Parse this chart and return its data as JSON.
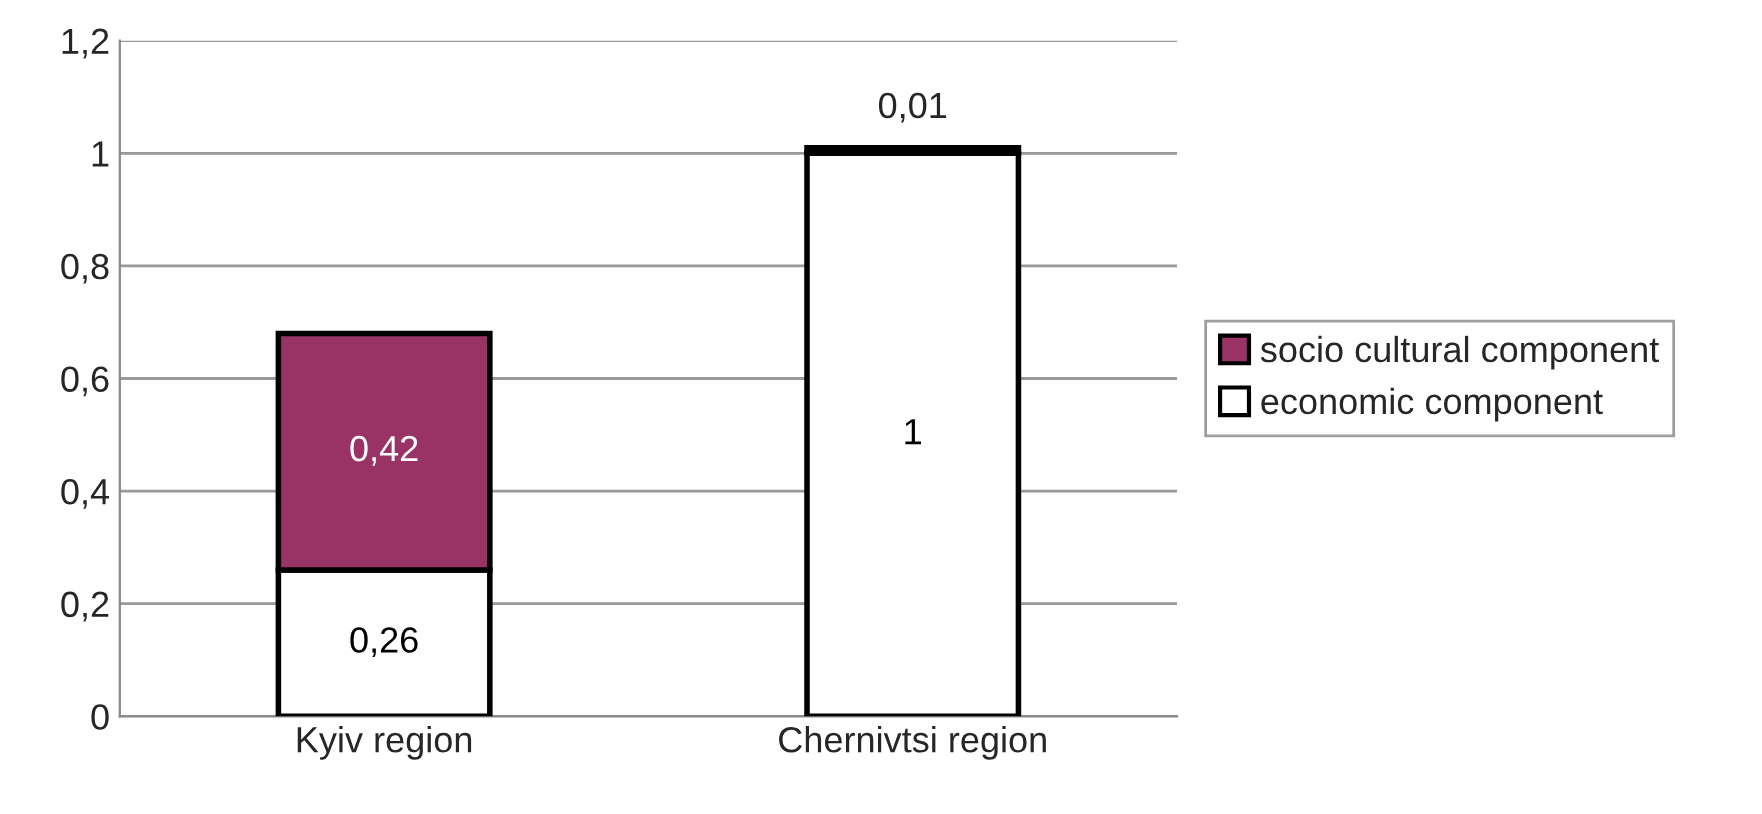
{
  "chart_data": {
    "type": "bar",
    "stacked": true,
    "categories": [
      "Kyiv region",
      "Chernivtsi region"
    ],
    "series": [
      {
        "name": "economic component",
        "color": "#ffffff",
        "values": [
          0.26,
          1
        ],
        "value_labels": [
          "0,26",
          "1"
        ]
      },
      {
        "name": "socio cultural component",
        "color": "#993366",
        "values": [
          0.42,
          0.01
        ],
        "value_labels": [
          "0,42",
          "0,01"
        ]
      }
    ],
    "ylim": [
      0,
      1.2
    ],
    "yticks": [
      0,
      {
        "value": 0.2,
        "label": "0,2"
      },
      {
        "value": 0.4,
        "label": "0,4"
      },
      {
        "value": 0.6,
        "label": "0,6"
      },
      {
        "value": 0.8,
        "label": "0,8"
      },
      1,
      {
        "value": 1.2,
        "label": "1,2"
      }
    ],
    "grid": "y",
    "legend": "right"
  }
}
